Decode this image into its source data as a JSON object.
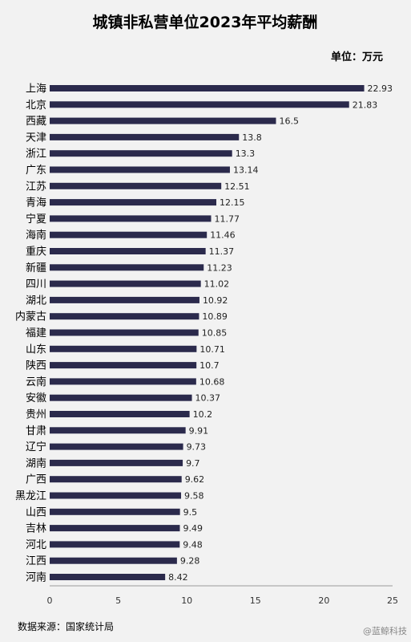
{
  "chart_data": {
    "type": "bar",
    "orientation": "horizontal",
    "title": "城镇非私营单位2023年平均薪酬",
    "unit_label": "单位：万元",
    "categories": [
      "上海",
      "北京",
      "西藏",
      "天津",
      "浙江",
      "广东",
      "江苏",
      "青海",
      "宁夏",
      "海南",
      "重庆",
      "新疆",
      "四川",
      "湖北",
      "内蒙古",
      "福建",
      "山东",
      "陕西",
      "云南",
      "安徽",
      "贵州",
      "甘肃",
      "辽宁",
      "湖南",
      "广西",
      "黑龙江",
      "山西",
      "吉林",
      "河北",
      "江西",
      "河南"
    ],
    "values": [
      22.93,
      21.83,
      16.5,
      13.8,
      13.3,
      13.14,
      12.51,
      12.15,
      11.77,
      11.46,
      11.37,
      11.23,
      11.02,
      10.92,
      10.89,
      10.85,
      10.71,
      10.7,
      10.68,
      10.37,
      10.2,
      9.91,
      9.73,
      9.7,
      9.62,
      9.58,
      9.5,
      9.49,
      9.48,
      9.28,
      8.42
    ],
    "value_labels": [
      "22.93",
      "21.83",
      "16.5",
      "13.8",
      "13.3",
      "13.14",
      "12.51",
      "12.15",
      "11.77",
      "11.46",
      "11.37",
      "11.23",
      "11.02",
      "10.92",
      "10.89",
      "10.85",
      "10.71",
      "10.7",
      "10.68",
      "10.37",
      "10.2",
      "9.91",
      "9.73",
      "9.7",
      "9.62",
      "9.58",
      "9.5",
      "9.49",
      "9.48",
      "9.28",
      "8.42"
    ],
    "xlim": [
      0,
      25
    ],
    "xticks": [
      "0",
      "5",
      "10",
      "15",
      "20",
      "25"
    ],
    "grid": false,
    "bar_color": "#2b2a4c"
  },
  "source": "数据来源：国家统计局",
  "watermark": "@蓝鲸科技"
}
